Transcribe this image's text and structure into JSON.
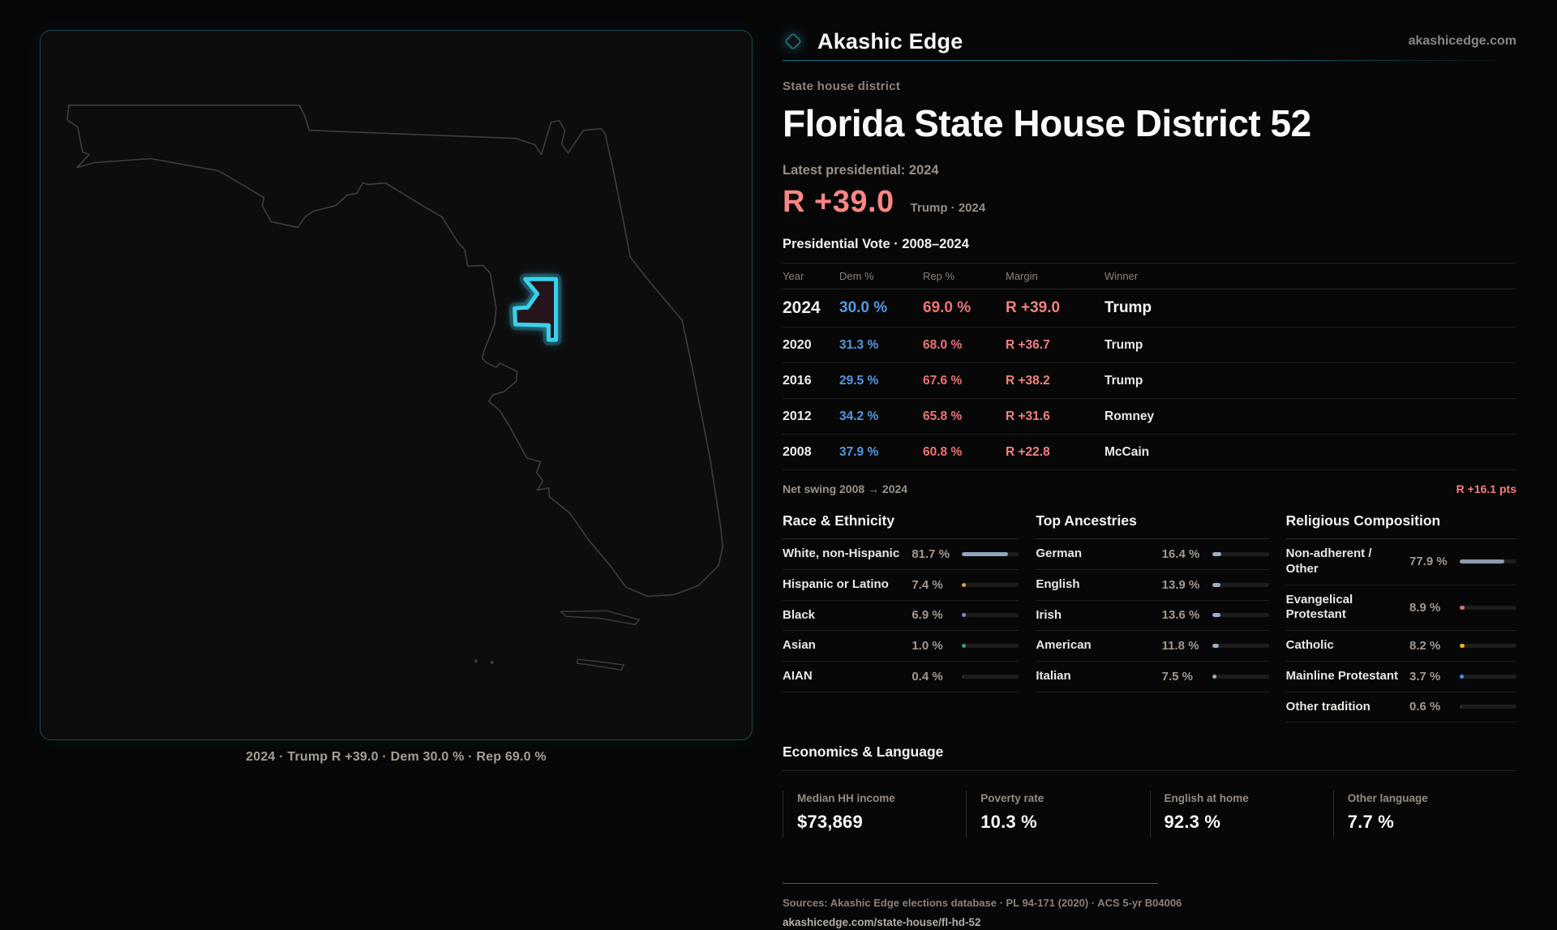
{
  "brand": {
    "name": "Akashic Edge",
    "domain": "akashicedge.com"
  },
  "map": {
    "caption": "2024 · Trump R +39.0 · Dem 30.0 % · Rep 69.0 %"
  },
  "profile": {
    "eyebrow": "State house district",
    "title": "Florida State House District 52",
    "latest_label": "Latest presidential: 2024",
    "margin_value": "R +39.0",
    "margin_note": "Trump · 2024"
  },
  "vote_table": {
    "heading": "Presidential Vote · 2008–2024",
    "columns": [
      "Year",
      "Dem %",
      "Rep %",
      "Margin",
      "Winner"
    ],
    "rows": [
      {
        "year": "2024",
        "dem": "30.0 %",
        "rep": "69.0 %",
        "margin": "R +39.0",
        "winner": "Trump"
      },
      {
        "year": "2020",
        "dem": "31.3 %",
        "rep": "68.0 %",
        "margin": "R +36.7",
        "winner": "Trump"
      },
      {
        "year": "2016",
        "dem": "29.5 %",
        "rep": "67.6 %",
        "margin": "R +38.2",
        "winner": "Trump"
      },
      {
        "year": "2012",
        "dem": "34.2 %",
        "rep": "65.8 %",
        "margin": "R +31.6",
        "winner": "Romney"
      },
      {
        "year": "2008",
        "dem": "37.9 %",
        "rep": "60.8 %",
        "margin": "R +22.8",
        "winner": "McCain"
      }
    ],
    "net_swing_label": "Net swing 2008 → 2024",
    "net_swing_value": "R +16.1 pts"
  },
  "demographics": {
    "columns": [
      {
        "title": "Race & Ethnicity",
        "rows": [
          {
            "label": "White, non-Hispanic",
            "value": "81.7 %",
            "pct": 81.7,
            "color": "#8fa6bd"
          },
          {
            "label": "Hispanic or Latino",
            "value": "7.4 %",
            "pct": 7.4,
            "color": "#e3a23c"
          },
          {
            "label": "Black",
            "value": "6.9 %",
            "pct": 6.9,
            "color": "#8a7fe8"
          },
          {
            "label": "Asian",
            "value": "1.0 %",
            "pct": 1.0,
            "color": "#3ba776"
          },
          {
            "label": "AIAN",
            "value": "0.4 %",
            "pct": 0.4,
            "color": null
          }
        ]
      },
      {
        "title": "Top Ancestries",
        "rows": [
          {
            "label": "German",
            "value": "16.4 %",
            "pct": 16.4,
            "color": "#9db0c4"
          },
          {
            "label": "English",
            "value": "13.9 %",
            "pct": 13.9,
            "color": "#9db0c4"
          },
          {
            "label": "Irish",
            "value": "13.6 %",
            "pct": 13.6,
            "color": "#9db0c4"
          },
          {
            "label": "American",
            "value": "11.8 %",
            "pct": 11.8,
            "color": "#9db0c4"
          },
          {
            "label": "Italian",
            "value": "7.5 %",
            "pct": 7.5,
            "color": "#9db0c4"
          }
        ]
      },
      {
        "title": "Religious Composition",
        "rows": [
          {
            "label": "Non-adherent / Other",
            "value": "77.9 %",
            "pct": 77.9,
            "color": "#8e9bb0"
          },
          {
            "label": "Evangelical Protestant",
            "value": "8.9 %",
            "pct": 8.9,
            "color": "#e06c6c"
          },
          {
            "label": "Catholic",
            "value": "8.2 %",
            "pct": 8.2,
            "color": "#e8b33c"
          },
          {
            "label": "Mainline Protestant",
            "value": "3.7 %",
            "pct": 3.7,
            "color": "#4f8df0"
          },
          {
            "label": "Other tradition",
            "value": "0.6 %",
            "pct": 0.6,
            "color": null
          }
        ]
      }
    ]
  },
  "economics": {
    "title": "Economics & Language",
    "stats": [
      {
        "label": "Median HH income",
        "value": "$73,869"
      },
      {
        "label": "Poverty rate",
        "value": "10.3 %"
      },
      {
        "label": "English at home",
        "value": "92.3 %"
      },
      {
        "label": "Other language",
        "value": "7.7 %"
      }
    ]
  },
  "footer": {
    "sources": "Sources: Akashic Edge elections database · PL 94-171 (2020) · ACS 5-yr B04006",
    "permalink": "akashicedge.com/state-house/fl-hd-52"
  },
  "colors": {
    "accent_teal": "#2fc6e4",
    "dem_blue": "#5598e3",
    "rep_red": "#ed7474",
    "margin_pink": "#f98585"
  }
}
